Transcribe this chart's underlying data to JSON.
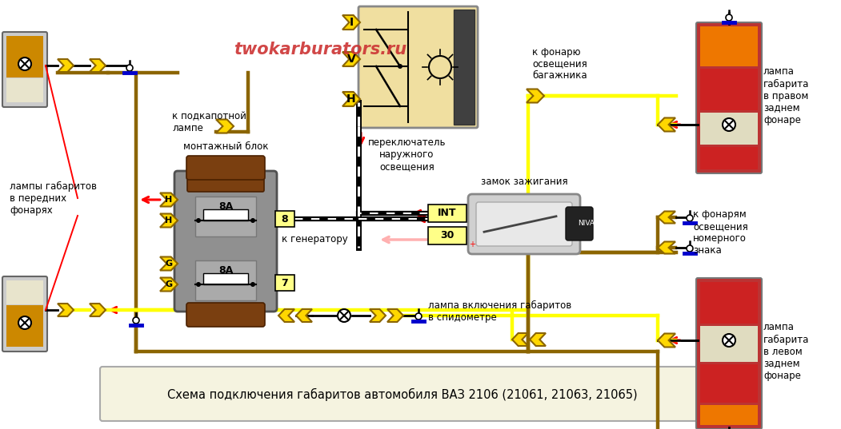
{
  "title": "Схема подключения габаритов автомобиля ВАЗ 2106 (21061, 21063, 21065)",
  "watermark": "twokarburators.ru",
  "bg_color": "#ffffff",
  "wire_yellow": "#ffff00",
  "wire_brown": "#8B6500",
  "wire_black": "#000000",
  "connector_fill": "#FFD700",
  "connector_edge": "#8B6500",
  "arrow_red": "#ff0000",
  "arrow_pink": "#ffb0b0",
  "labels": {
    "front_lamps": "лампы габаритов\nв передних\nфонарях",
    "hood_lamp": "к подкапотной\nлампе",
    "mount_block": "монтажный блок",
    "switch_label": "переключатель\nнаружного\nосвещения",
    "ignition": "замок зажигания",
    "generator": "к генератору",
    "speedo_lamp": "лампа включения габаритов\nв спидометре",
    "trunk_light": "к фонарю\nосвещения\nбагажника",
    "right_rear": "лампа\nгабарита\nв правом\nзаднем\nфонаре",
    "license_lamps": "к фонарям\nосвещения\nномерного\nзнака",
    "left_rear": "лампа\nгабарита\nв левом\nзаднем\nфонаре"
  }
}
